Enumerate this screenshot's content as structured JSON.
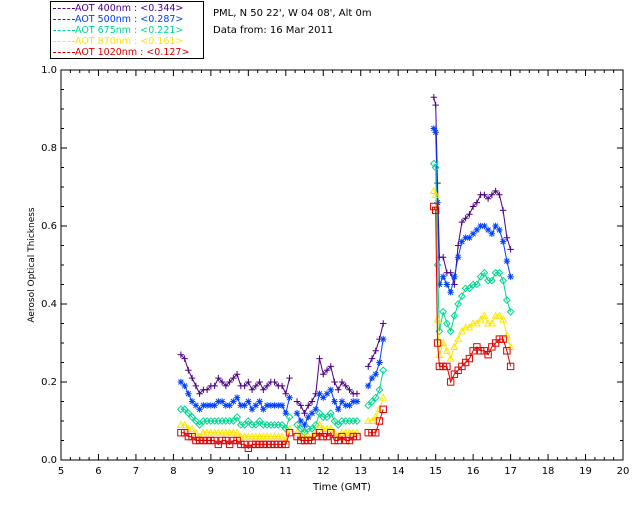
{
  "header": {
    "site": "PML, N 50 22', W 04 08', Alt 0m",
    "date": "Data from: 16 Mar 2011"
  },
  "legend": [
    {
      "label": "AOT  400nm : <0.344>",
      "color": "#4B0082"
    },
    {
      "label": "AOT  500nm : <0.287>",
      "color": "#0040FF"
    },
    {
      "label": "AOT  675nm : <0.221>",
      "color": "#00D890"
    },
    {
      "label": "AOT  870nm : <0.161>",
      "color": "#FFE600"
    },
    {
      "label": "AOT 1020nm : <0.127>",
      "color": "#E00000"
    }
  ],
  "chart_data": {
    "type": "line",
    "title": "",
    "xlabel": "Time (GMT)",
    "ylabel": "Aerosol Optical Thickness",
    "xlim": [
      5,
      20
    ],
    "ylim": [
      0.0,
      1.0
    ],
    "xticks": [
      "5",
      "6",
      "7",
      "8",
      "9",
      "10",
      "11",
      "12",
      "13",
      "14",
      "15",
      "16",
      "17",
      "18",
      "19",
      "20"
    ],
    "yticks": [
      "0.0",
      "0.2",
      "0.4",
      "0.6",
      "0.8",
      "1.0"
    ],
    "x": [
      8.2,
      8.3,
      8.4,
      8.5,
      8.6,
      8.7,
      8.8,
      8.9,
      9.0,
      9.1,
      9.2,
      9.3,
      9.4,
      9.5,
      9.6,
      9.7,
      9.8,
      9.9,
      10.0,
      10.1,
      10.2,
      10.3,
      10.4,
      10.5,
      10.6,
      10.7,
      10.8,
      10.9,
      11.0,
      11.1,
      null,
      11.3,
      11.4,
      11.5,
      11.6,
      11.7,
      11.8,
      11.9,
      12.0,
      12.1,
      12.2,
      12.3,
      12.4,
      12.5,
      12.6,
      12.7,
      12.8,
      12.9,
      null,
      13.2,
      13.3,
      13.4,
      13.5,
      13.6,
      null,
      14.95,
      15.0,
      15.05,
      15.1,
      15.2,
      15.3,
      15.4,
      15.5,
      15.6,
      15.7,
      15.8,
      15.9,
      16.0,
      16.1,
      16.2,
      16.3,
      16.4,
      16.5,
      16.6,
      16.7,
      16.8,
      16.9,
      17.0
    ],
    "series": [
      {
        "name": "AOT  400nm",
        "marker": "plus",
        "color": "#4B0082",
        "values": [
          0.27,
          0.26,
          0.23,
          0.21,
          0.19,
          0.17,
          0.18,
          0.18,
          0.19,
          0.19,
          0.21,
          0.2,
          0.19,
          0.2,
          0.21,
          0.22,
          0.19,
          0.19,
          0.2,
          0.18,
          0.19,
          0.2,
          0.18,
          0.19,
          0.2,
          0.2,
          0.19,
          0.19,
          0.17,
          0.21,
          null,
          0.15,
          0.14,
          0.12,
          0.14,
          0.15,
          0.17,
          0.26,
          0.22,
          0.23,
          0.24,
          0.2,
          0.18,
          0.2,
          0.19,
          0.18,
          0.17,
          0.17,
          null,
          0.24,
          0.26,
          0.28,
          0.31,
          0.35,
          null,
          0.93,
          0.91,
          0.71,
          0.52,
          0.52,
          0.48,
          0.48,
          0.45,
          0.55,
          0.61,
          0.62,
          0.63,
          0.65,
          0.66,
          0.68,
          0.68,
          0.67,
          0.68,
          0.69,
          0.68,
          0.64,
          0.57,
          0.54
        ]
      },
      {
        "name": "AOT  500nm",
        "marker": "star",
        "color": "#0040FF",
        "values": [
          0.2,
          0.19,
          0.17,
          0.15,
          0.14,
          0.13,
          0.14,
          0.14,
          0.14,
          0.14,
          0.15,
          0.15,
          0.14,
          0.14,
          0.15,
          0.16,
          0.14,
          0.14,
          0.15,
          0.13,
          0.14,
          0.15,
          0.13,
          0.14,
          0.14,
          0.14,
          0.14,
          0.14,
          0.12,
          0.16,
          null,
          0.12,
          0.1,
          0.09,
          0.11,
          0.12,
          0.13,
          0.17,
          0.16,
          0.17,
          0.18,
          0.15,
          0.13,
          0.15,
          0.14,
          0.14,
          0.15,
          0.15,
          null,
          0.19,
          0.21,
          0.22,
          0.25,
          0.31,
          null,
          0.85,
          0.84,
          0.66,
          0.45,
          0.47,
          0.45,
          0.43,
          0.47,
          0.52,
          0.56,
          0.57,
          0.57,
          0.58,
          0.59,
          0.6,
          0.6,
          0.59,
          0.58,
          0.6,
          0.59,
          0.56,
          0.51,
          0.47
        ]
      },
      {
        "name": "AOT  675nm",
        "marker": "diamond",
        "color": "#00D890",
        "values": [
          0.13,
          0.13,
          0.12,
          0.11,
          0.1,
          0.09,
          0.1,
          0.1,
          0.1,
          0.1,
          0.1,
          0.1,
          0.1,
          0.1,
          0.1,
          0.11,
          0.09,
          0.09,
          0.1,
          0.09,
          0.09,
          0.1,
          0.09,
          0.09,
          0.09,
          0.09,
          0.09,
          0.09,
          0.08,
          0.11,
          null,
          0.09,
          0.08,
          0.07,
          0.08,
          0.08,
          0.09,
          0.12,
          0.11,
          0.11,
          0.12,
          0.1,
          0.09,
          0.1,
          0.1,
          0.1,
          0.1,
          0.1,
          null,
          0.14,
          0.15,
          0.16,
          0.18,
          0.23,
          null,
          0.76,
          0.75,
          0.5,
          0.33,
          0.38,
          0.35,
          0.33,
          0.37,
          0.4,
          0.42,
          0.44,
          0.44,
          0.45,
          0.45,
          0.47,
          0.48,
          0.46,
          0.46,
          0.48,
          0.48,
          0.46,
          0.41,
          0.38
        ]
      },
      {
        "name": "AOT  870nm",
        "marker": "triangle",
        "color": "#FFE600",
        "values": [
          0.09,
          0.09,
          0.08,
          0.08,
          0.07,
          0.06,
          0.07,
          0.07,
          0.07,
          0.07,
          0.07,
          0.07,
          0.07,
          0.07,
          0.07,
          0.07,
          0.06,
          0.06,
          0.06,
          0.06,
          0.06,
          0.06,
          0.06,
          0.06,
          0.06,
          0.06,
          0.06,
          0.06,
          0.05,
          0.08,
          null,
          0.07,
          0.06,
          0.06,
          0.06,
          0.06,
          0.07,
          0.09,
          0.08,
          0.08,
          0.08,
          0.07,
          0.06,
          0.07,
          0.07,
          0.07,
          0.07,
          0.07,
          null,
          0.1,
          0.1,
          0.11,
          0.13,
          0.16,
          null,
          0.69,
          0.68,
          0.36,
          0.27,
          0.3,
          0.28,
          0.26,
          0.29,
          0.31,
          0.33,
          0.34,
          0.34,
          0.35,
          0.35,
          0.36,
          0.37,
          0.35,
          0.35,
          0.37,
          0.37,
          0.36,
          0.32,
          0.29
        ]
      },
      {
        "name": "AOT 1020nm",
        "marker": "square",
        "color": "#E00000",
        "values": [
          0.07,
          0.07,
          0.06,
          0.06,
          0.05,
          0.05,
          0.05,
          0.05,
          0.05,
          0.05,
          0.04,
          0.05,
          0.05,
          0.04,
          0.05,
          0.05,
          0.04,
          0.04,
          0.03,
          0.04,
          0.04,
          0.04,
          0.04,
          0.04,
          0.04,
          0.04,
          0.04,
          0.04,
          0.04,
          0.07,
          null,
          0.06,
          0.05,
          0.05,
          0.05,
          0.05,
          0.06,
          0.07,
          0.06,
          0.06,
          0.07,
          0.05,
          0.05,
          0.06,
          0.05,
          0.05,
          0.06,
          0.06,
          null,
          0.07,
          0.07,
          0.07,
          0.1,
          0.13,
          null,
          0.65,
          0.64,
          0.3,
          0.24,
          0.24,
          0.24,
          0.2,
          0.22,
          0.23,
          0.24,
          0.25,
          0.26,
          0.28,
          0.29,
          0.28,
          0.28,
          0.27,
          0.29,
          0.3,
          0.31,
          0.31,
          0.28,
          0.24
        ]
      }
    ],
    "grid": false,
    "legend_position": "top-left"
  }
}
